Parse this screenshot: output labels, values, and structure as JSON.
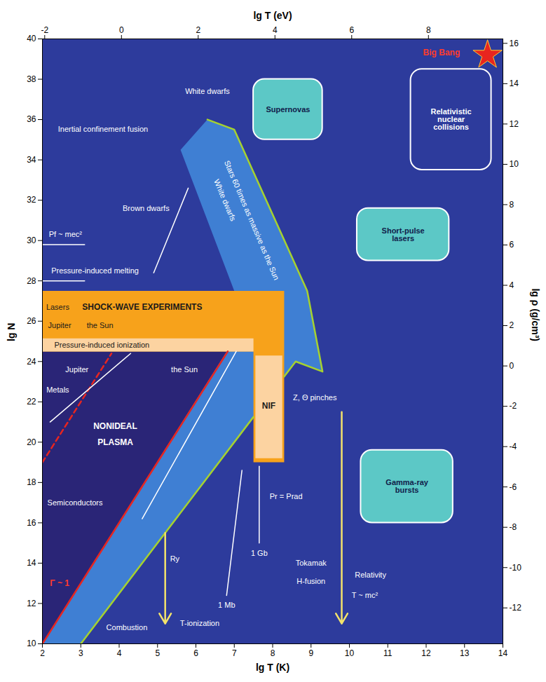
{
  "chart_data": {
    "type": "region",
    "x_label": "lg T (K)",
    "y_label": "lg N",
    "x2_label": "lg T (eV)",
    "y2_label": "lg ρ (g/cm³)",
    "color": "#2d3b9c",
    "xlim": [
      2,
      14
    ],
    "xticks": [
      2,
      3,
      4,
      5,
      6,
      7,
      8,
      9,
      10,
      11,
      12,
      13,
      14
    ],
    "ylim": [
      10,
      40
    ],
    "yticks": [
      10,
      12,
      14,
      16,
      18,
      20,
      22,
      24,
      26,
      28,
      30,
      32,
      34,
      36,
      38,
      40
    ],
    "x2lim": [
      -2.06,
      9.94
    ],
    "x2ticks": [
      -2,
      0,
      2,
      4,
      6,
      8
    ],
    "y2lim": [
      -13.78,
      16.22
    ],
    "y2ticks": [
      -12,
      -10,
      -8,
      -6,
      -4,
      -2,
      0,
      2,
      4,
      6,
      8,
      10,
      12,
      14,
      16
    ],
    "regions": [
      {
        "color": "#2a2577",
        "x": [
          2,
          7.3,
          2
        ],
        "y": [
          10,
          26,
          26
        ]
      },
      {
        "color": "#3f7fd3",
        "x": [
          2,
          3,
          8.6,
          9.3,
          8.9,
          7.0,
          6.3,
          5.6,
          7.3
        ],
        "y": [
          10,
          10,
          24,
          23.5,
          27.5,
          35.5,
          36,
          34.5,
          26
        ]
      },
      {
        "color": "#f7a21b",
        "x": [
          2,
          7.5,
          7.5,
          8.3,
          8.3,
          2
        ],
        "y": [
          24.5,
          24.5,
          19,
          19,
          27.5,
          27.5
        ]
      },
      {
        "color": "#fcd3a1",
        "x": [
          2,
          7.5,
          7.5,
          2
        ],
        "y": [
          24.5,
          24.5,
          25.15,
          25.15
        ]
      },
      {
        "color": "#fcd3a1",
        "x": [
          7.55,
          8.25,
          8.25,
          7.55
        ],
        "y": [
          19.2,
          19.2,
          24.3,
          24.3
        ]
      }
    ],
    "lines": [
      {
        "color": "#e8251f",
        "line_style": "solid",
        "x": [
          2,
          6.83
        ],
        "y": [
          10,
          24.5
        ]
      },
      {
        "color": "#e8251f",
        "line_style": "dashed",
        "x": [
          2,
          3.8
        ],
        "y": [
          19,
          24.4
        ]
      },
      {
        "color": "#a6d22f",
        "line_style": "solid",
        "x": [
          3,
          7.5
        ],
        "y": [
          10,
          21.25
        ]
      },
      {
        "color": "#a6d22f",
        "line_style": "solid",
        "x": [
          8.3,
          8.6,
          9.3,
          8.9,
          7.0,
          6.3
        ],
        "y": [
          23.25,
          24,
          23.5,
          27.5,
          35.5,
          36
        ]
      },
      {
        "color": "#ffffff",
        "line_style": "solid",
        "x": [
          2.2,
          4.3
        ],
        "y": [
          21,
          24.4
        ]
      },
      {
        "color": "#ffffff",
        "line_style": "solid",
        "x": [
          4.6,
          7.05
        ],
        "y": [
          16.2,
          24.5
        ]
      },
      {
        "color": "#ffffff",
        "line_style": "solid",
        "x": [
          4.9,
          5.8
        ],
        "y": [
          28.4,
          32.6
        ]
      },
      {
        "color": "#ffffff",
        "line_style": "solid",
        "x": [
          2,
          3.1
        ],
        "y": [
          28,
          28
        ]
      },
      {
        "color": "#ffffff",
        "line_style": "solid",
        "x": [
          2,
          3.1
        ],
        "y": [
          29.8,
          29.8
        ]
      },
      {
        "color": "#ffffff",
        "line_style": "solid",
        "x": [
          6.8,
          7.2
        ],
        "y": [
          12.4,
          18.6
        ]
      },
      {
        "color": "#ffffff",
        "line_style": "solid",
        "x": [
          7.65,
          7.65
        ],
        "y": [
          15,
          18.8
        ]
      }
    ],
    "arrows": [
      {
        "x1": 9.8,
        "y1": 21.5,
        "x2": 9.8,
        "y2": 11,
        "color": "#f3e36b"
      },
      {
        "x1": 5.2,
        "y1": 15.5,
        "x2": 5.2,
        "y2": 11,
        "color": "#f3e36b"
      }
    ],
    "boxes": [
      {
        "text": "Relativistic nuclear collisions",
        "x1": 11.6,
        "x2": 13.7,
        "y1": 33.5,
        "y2": 38.5,
        "color": "#2d3b9c"
      },
      {
        "text": "Short-pulse lasers",
        "x1": 10.2,
        "x2": 12.6,
        "y1": 29,
        "y2": 31.6,
        "color": "#5cc8c6"
      },
      {
        "text": "Supernovas",
        "x1": 7.5,
        "x2": 9.3,
        "y1": 35,
        "y2": 38,
        "color": "#5cc8c6"
      },
      {
        "text": "Gamma-ray bursts",
        "x1": 10.3,
        "x2": 12.7,
        "y1": 16,
        "y2": 19.6,
        "color": "#5cc8c6"
      }
    ],
    "points": [
      {
        "x": 13.6,
        "y": 39.2,
        "color": "#e8251f",
        "marker": "star"
      }
    ],
    "labels": [
      {
        "text": "Lasers",
        "x": 2.4,
        "y": 26.7,
        "color": "#1a1a1a"
      },
      {
        "text": "Jupiter",
        "x": 2.45,
        "y": 25.8,
        "color": "#1a1a1a"
      },
      {
        "text": "the Sun",
        "x": 3.5,
        "y": 25.8,
        "color": "#1a1a1a"
      },
      {
        "text": "Pressure-induced ionization",
        "x": 3.55,
        "y": 24.82,
        "color": "#1a1a1a"
      },
      {
        "text": "Metals",
        "x": 2.4,
        "y": 22.6,
        "color": "#ffffff"
      },
      {
        "text": "Jupiter",
        "x": 2.9,
        "y": 23.6,
        "color": "#ffffff"
      },
      {
        "text": "the Sun",
        "x": 5.7,
        "y": 23.6,
        "color": "#ffffff"
      },
      {
        "text": "Semiconductors",
        "x": 2.85,
        "y": 17,
        "color": "#ffffff"
      },
      {
        "text": "Combustion",
        "x": 4.2,
        "y": 10.8,
        "color": "#ffffff"
      },
      {
        "text": "T-ionization",
        "x": 6.1,
        "y": 11,
        "color": "#ffffff"
      },
      {
        "text": "Ry",
        "x": 5.45,
        "y": 14.2,
        "color": "#ffffff"
      },
      {
        "text": "1 Mb",
        "x": 6.8,
        "y": 11.9,
        "color": "#ffffff"
      },
      {
        "text": "1 Gb",
        "x": 7.65,
        "y": 14.5,
        "color": "#ffffff"
      },
      {
        "text": "Pr = Prad",
        "x": 8.35,
        "y": 17.3,
        "color": "#ffffff"
      },
      {
        "text": "Z, Θ pinches",
        "x": 9.1,
        "y": 22.2,
        "color": "#ffffff"
      },
      {
        "text": "Tokamak",
        "x": 9.0,
        "y": 14.0,
        "color": "#ffffff"
      },
      {
        "text": "H-fusion",
        "x": 9.0,
        "y": 13.1,
        "color": "#ffffff"
      },
      {
        "text": "Relativity",
        "x": 10.55,
        "y": 13.4,
        "color": "#ffffff"
      },
      {
        "text": "T ~ mc²",
        "x": 10.4,
        "y": 12.4,
        "color": "#ffffff"
      },
      {
        "text": "Pressure-induced melting",
        "x": 3.37,
        "y": 28.5,
        "color": "#ffffff"
      },
      {
        "text": "Pf ~ mec²",
        "x": 2.6,
        "y": 30.3,
        "color": "#ffffff"
      },
      {
        "text": "Brown dwarfs",
        "x": 4.7,
        "y": 31.6,
        "color": "#ffffff"
      },
      {
        "text": "Inertial confinement fusion",
        "x": 3.58,
        "y": 35.5,
        "color": "#ffffff"
      },
      {
        "text": "White dwarfs",
        "x": 6.3,
        "y": 37.4,
        "color": "#ffffff"
      }
    ],
    "bold_labels": [
      {
        "text": "SHOCK-WAVE EXPERIMENTS",
        "x": 4.6,
        "y": 26.7,
        "color": "#1a1a1a"
      },
      {
        "text": "NONIDEAL",
        "x": 3.9,
        "y": 20.8,
        "color": "#ffffff"
      },
      {
        "text": "PLASMA",
        "x": 3.9,
        "y": 20.0,
        "color": "#ffffff"
      },
      {
        "text": "NIF",
        "x": 7.9,
        "y": 21.8,
        "color": "#1a1a1a"
      },
      {
        "text": "Γ ~ 1",
        "x": 2.45,
        "y": 13,
        "color": "#ff3b2b"
      },
      {
        "text": "Big Bang",
        "x": 12.4,
        "y": 39.3,
        "color": "#ff3b2b"
      }
    ],
    "band_labels": [
      {
        "text": "White dwarfs",
        "x": 6.75,
        "y": 32.0,
        "color": "#ffffff"
      },
      {
        "text": "Stars 60 times as massive as the Sun",
        "x": 7.45,
        "y": 31.0,
        "color": "#ffffff"
      }
    ]
  }
}
